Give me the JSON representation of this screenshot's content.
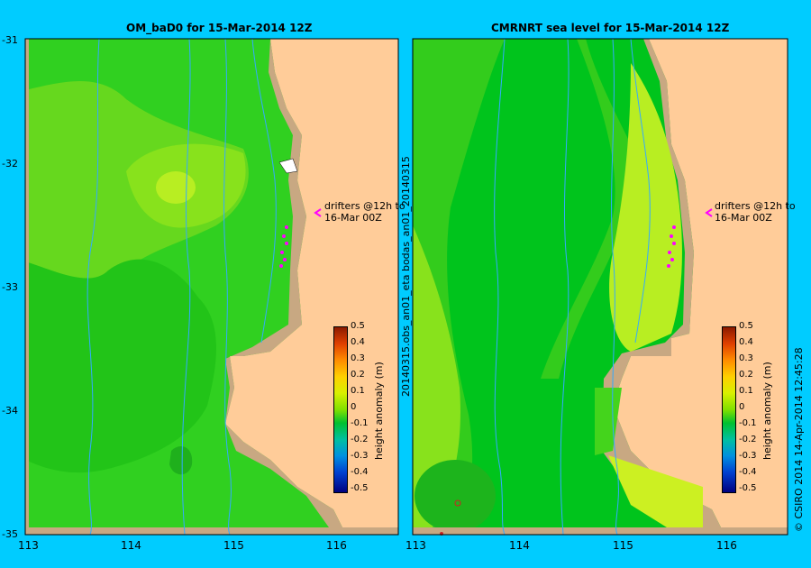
{
  "left": {
    "title": "OM_baD0 for 15-Mar-2014 12Z"
  },
  "right": {
    "title": "CMRNRT sea level  for 15-Mar-2014 12Z"
  },
  "y_ticks": [
    "-31",
    "-32",
    "-33",
    "-34",
    "-35"
  ],
  "x_ticks_left": [
    "113",
    "114",
    "115",
    "116"
  ],
  "x_ticks_right": [
    "113",
    "114",
    "115",
    "116"
  ],
  "annotation": {
    "line1": "drifters @12h to",
    "line2": "16-Mar 00Z"
  },
  "colorbar": {
    "label": "height anomaly (m)",
    "ticks": [
      "0.5",
      "0.4",
      "0.3",
      "0.2",
      "0.1",
      "0",
      "-0.1",
      "-0.2",
      "-0.3",
      "-0.4",
      "-0.5"
    ]
  },
  "side_label": "20140315.obs_an01_eta   bodas_an01_20140315",
  "credit": "© CSIRO 2014   14-Apr-2014 12:45:28",
  "colors": {
    "background": "#00ccff",
    "land": "#ffcc99",
    "coast": "#c8a882",
    "sea_green": "#22cc22",
    "light_green": "#99ee22",
    "drifters": "#ff00ff"
  }
}
